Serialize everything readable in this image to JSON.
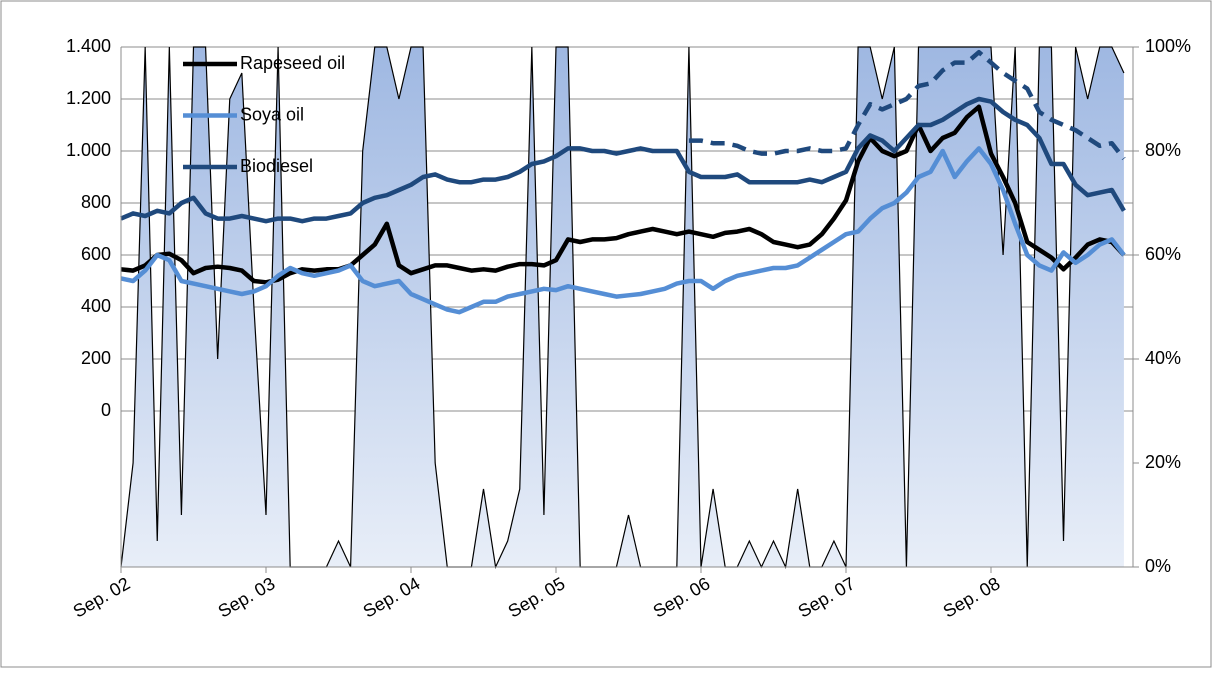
{
  "chart_data": {
    "type": "line",
    "categories": [
      "Sep. 02",
      null,
      null,
      null,
      null,
      null,
      null,
      null,
      null,
      null,
      null,
      null,
      "Sep. 03",
      null,
      null,
      null,
      null,
      null,
      null,
      null,
      null,
      null,
      null,
      null,
      "Sep. 04",
      null,
      null,
      null,
      null,
      null,
      null,
      null,
      null,
      null,
      null,
      null,
      "Sep. 05",
      null,
      null,
      null,
      null,
      null,
      null,
      null,
      null,
      null,
      null,
      null,
      "Sep. 06",
      null,
      null,
      null,
      null,
      null,
      null,
      null,
      null,
      null,
      null,
      null,
      "Sep. 07",
      null,
      null,
      null,
      null,
      null,
      null,
      null,
      null,
      null,
      null,
      null,
      "Sep. 08",
      null,
      null,
      null,
      null,
      null,
      null,
      null,
      null,
      null,
      null,
      null
    ],
    "series": [
      {
        "name": "Rapeseed oil",
        "color": "#000000",
        "values": [
          545,
          540,
          560,
          600,
          605,
          580,
          530,
          550,
          555,
          550,
          540,
          500,
          495,
          505,
          530,
          545,
          540,
          545,
          545,
          560,
          600,
          640,
          720,
          560,
          530,
          545,
          560,
          560,
          550,
          540,
          545,
          540,
          555,
          565,
          565,
          560,
          580,
          660,
          650,
          660,
          660,
          665,
          680,
          690,
          700,
          690,
          680,
          690,
          680,
          670,
          685,
          690,
          700,
          680,
          650,
          640,
          630,
          640,
          680,
          740,
          810,
          960,
          1050,
          1000,
          980,
          1000,
          1100,
          1000,
          1050,
          1070,
          1130,
          1170,
          990,
          900,
          800,
          650,
          620,
          590,
          545,
          590,
          640,
          660,
          650,
          600
        ]
      },
      {
        "name": "Soya oil",
        "color": "#558ed5",
        "values": [
          510,
          500,
          540,
          600,
          580,
          500,
          490,
          480,
          470,
          460,
          450,
          460,
          480,
          520,
          550,
          530,
          520,
          530,
          540,
          560,
          500,
          480,
          490,
          500,
          450,
          430,
          410,
          390,
          380,
          400,
          420,
          420,
          440,
          450,
          460,
          470,
          465,
          480,
          470,
          460,
          450,
          440,
          445,
          450,
          460,
          470,
          490,
          500,
          500,
          470,
          500,
          520,
          530,
          540,
          550,
          550,
          560,
          590,
          620,
          650,
          680,
          690,
          740,
          780,
          800,
          840,
          900,
          920,
          1000,
          900,
          960,
          1010,
          950,
          850,
          720,
          600,
          560,
          540,
          610,
          570,
          600,
          640,
          660,
          600
        ]
      },
      {
        "name": "Biodiesel",
        "color": "#1f497d",
        "values": [
          740,
          760,
          750,
          770,
          760,
          800,
          820,
          760,
          740,
          740,
          750,
          740,
          730,
          740,
          740,
          730,
          740,
          740,
          750,
          760,
          800,
          820,
          830,
          850,
          870,
          900,
          910,
          890,
          880,
          880,
          890,
          890,
          900,
          920,
          950,
          960,
          980,
          1010,
          1010,
          1000,
          1000,
          990,
          1000,
          1010,
          1000,
          1000,
          1000,
          920,
          900,
          900,
          900,
          910,
          880,
          880,
          880,
          880,
          880,
          890,
          880,
          900,
          920,
          1010,
          1060,
          1040,
          1000,
          1050,
          1100,
          1100,
          1120,
          1150,
          1180,
          1200,
          1190,
          1150,
          1120,
          1100,
          1050,
          950,
          950,
          870,
          830,
          840,
          850,
          770
        ]
      },
      {
        "color": "#1f497d",
        "dash": true,
        "values": [
          null,
          null,
          null,
          null,
          null,
          null,
          null,
          null,
          null,
          null,
          null,
          null,
          null,
          null,
          null,
          null,
          null,
          null,
          null,
          null,
          null,
          null,
          null,
          null,
          null,
          null,
          null,
          null,
          null,
          null,
          null,
          null,
          null,
          null,
          null,
          null,
          null,
          null,
          null,
          null,
          null,
          null,
          null,
          null,
          null,
          null,
          null,
          1040,
          1040,
          1030,
          1030,
          1020,
          1000,
          990,
          990,
          1000,
          1000,
          1010,
          1000,
          1000,
          1010,
          1100,
          1180,
          1160,
          1180,
          1200,
          1250,
          1260,
          1310,
          1340,
          1340,
          1380,
          1340,
          1300,
          1270,
          1240,
          1150,
          1120,
          1100,
          1080,
          1050,
          1020,
          1030,
          970
        ]
      },
      {
        "color": "#000000",
        "area": true,
        "axis": "y2",
        "values": [
          0,
          20,
          100,
          5,
          100,
          10,
          100,
          100,
          40,
          90,
          95,
          50,
          10,
          100,
          0,
          0,
          0,
          0,
          5,
          0,
          80,
          100,
          100,
          90,
          100,
          100,
          20,
          0,
          0,
          0,
          15,
          0,
          5,
          15,
          100,
          10,
          100,
          100,
          0,
          0,
          0,
          0,
          10,
          0,
          0,
          0,
          0,
          100,
          0,
          15,
          0,
          0,
          5,
          0,
          5,
          0,
          15,
          0,
          0,
          5,
          0,
          100,
          100,
          90,
          100,
          0,
          100,
          100,
          100,
          100,
          100,
          100,
          100,
          60,
          100,
          0,
          100,
          100,
          5,
          100,
          90,
          100,
          100,
          95
        ]
      }
    ],
    "ylim": [
      -600,
      1400
    ],
    "yticks": [
      0,
      200,
      400,
      600,
      800,
      {
        "value": 1000,
        "label": "1.000"
      },
      {
        "value": 1200,
        "label": "1.200"
      },
      {
        "value": 1400,
        "label": "1.400"
      }
    ],
    "y2lim": [
      0,
      100
    ],
    "y2ticks": [
      {
        "value": 0,
        "label": "0%"
      },
      {
        "value": 20,
        "label": "20%"
      },
      {
        "value": 40,
        "label": "40%"
      },
      {
        "value": 60,
        "label": "60%"
      },
      {
        "value": 80,
        "label": "80%"
      },
      {
        "value": 100,
        "label": "100%"
      }
    ],
    "grid": true,
    "legend": "top-left"
  }
}
